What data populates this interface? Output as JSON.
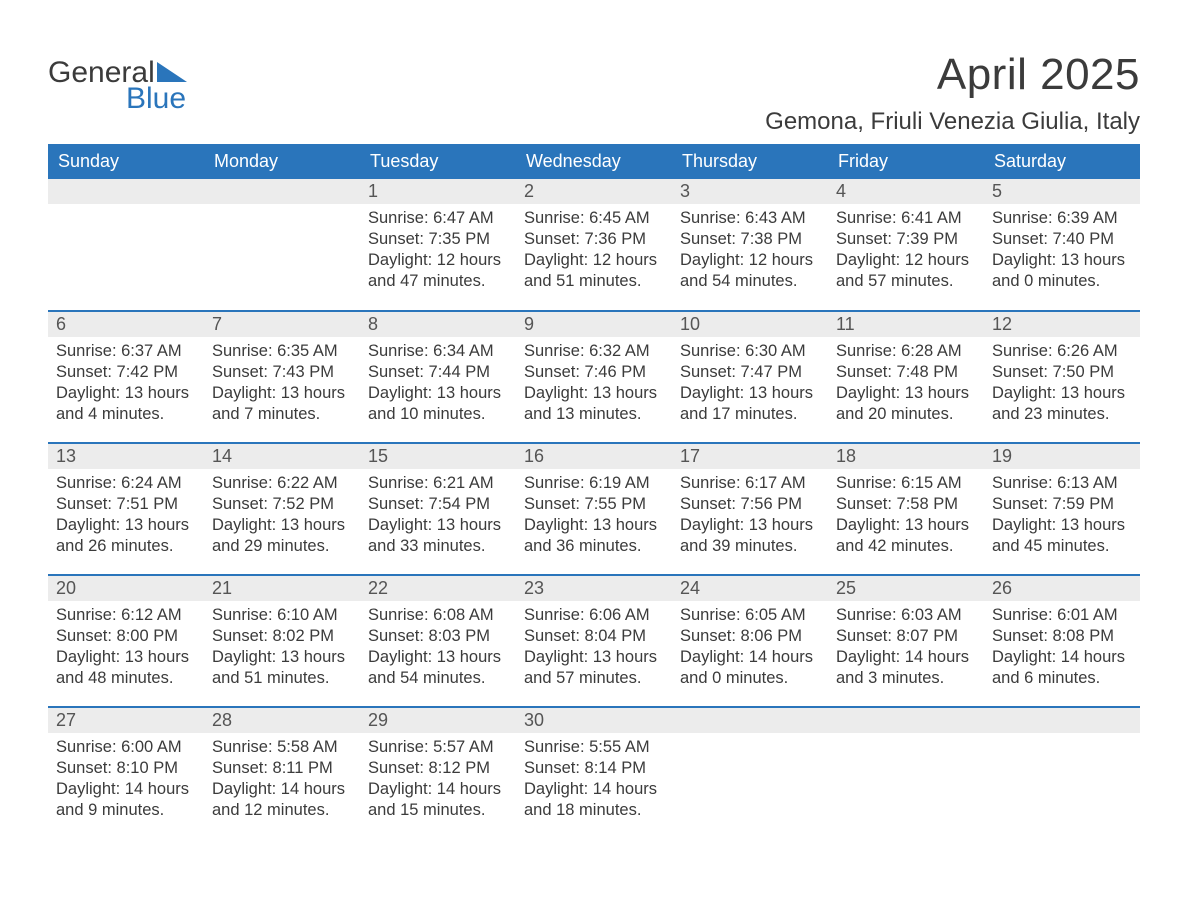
{
  "logo": {
    "word1": "General",
    "word2": "Blue"
  },
  "title": "April 2025",
  "location": "Gemona, Friuli Venezia Giulia, Italy",
  "colors": {
    "brand_blue": "#2a75bb",
    "header_text": "#ffffff",
    "body_text": "#3b3b3b",
    "daynum_bg": "#ececec",
    "background": "#ffffff"
  },
  "typography": {
    "title_fontsize": 44,
    "location_fontsize": 24,
    "header_fontsize": 18,
    "cell_fontsize": 16.5
  },
  "calendar": {
    "headers": [
      "Sunday",
      "Monday",
      "Tuesday",
      "Wednesday",
      "Thursday",
      "Friday",
      "Saturday"
    ],
    "weeks": [
      [
        {
          "day": "",
          "sunrise": "",
          "sunset": "",
          "daylight": ""
        },
        {
          "day": "",
          "sunrise": "",
          "sunset": "",
          "daylight": ""
        },
        {
          "day": "1",
          "sunrise": "Sunrise: 6:47 AM",
          "sunset": "Sunset: 7:35 PM",
          "daylight": "Daylight: 12 hours and 47 minutes."
        },
        {
          "day": "2",
          "sunrise": "Sunrise: 6:45 AM",
          "sunset": "Sunset: 7:36 PM",
          "daylight": "Daylight: 12 hours and 51 minutes."
        },
        {
          "day": "3",
          "sunrise": "Sunrise: 6:43 AM",
          "sunset": "Sunset: 7:38 PM",
          "daylight": "Daylight: 12 hours and 54 minutes."
        },
        {
          "day": "4",
          "sunrise": "Sunrise: 6:41 AM",
          "sunset": "Sunset: 7:39 PM",
          "daylight": "Daylight: 12 hours and 57 minutes."
        },
        {
          "day": "5",
          "sunrise": "Sunrise: 6:39 AM",
          "sunset": "Sunset: 7:40 PM",
          "daylight": "Daylight: 13 hours and 0 minutes."
        }
      ],
      [
        {
          "day": "6",
          "sunrise": "Sunrise: 6:37 AM",
          "sunset": "Sunset: 7:42 PM",
          "daylight": "Daylight: 13 hours and 4 minutes."
        },
        {
          "day": "7",
          "sunrise": "Sunrise: 6:35 AM",
          "sunset": "Sunset: 7:43 PM",
          "daylight": "Daylight: 13 hours and 7 minutes."
        },
        {
          "day": "8",
          "sunrise": "Sunrise: 6:34 AM",
          "sunset": "Sunset: 7:44 PM",
          "daylight": "Daylight: 13 hours and 10 minutes."
        },
        {
          "day": "9",
          "sunrise": "Sunrise: 6:32 AM",
          "sunset": "Sunset: 7:46 PM",
          "daylight": "Daylight: 13 hours and 13 minutes."
        },
        {
          "day": "10",
          "sunrise": "Sunrise: 6:30 AM",
          "sunset": "Sunset: 7:47 PM",
          "daylight": "Daylight: 13 hours and 17 minutes."
        },
        {
          "day": "11",
          "sunrise": "Sunrise: 6:28 AM",
          "sunset": "Sunset: 7:48 PM",
          "daylight": "Daylight: 13 hours and 20 minutes."
        },
        {
          "day": "12",
          "sunrise": "Sunrise: 6:26 AM",
          "sunset": "Sunset: 7:50 PM",
          "daylight": "Daylight: 13 hours and 23 minutes."
        }
      ],
      [
        {
          "day": "13",
          "sunrise": "Sunrise: 6:24 AM",
          "sunset": "Sunset: 7:51 PM",
          "daylight": "Daylight: 13 hours and 26 minutes."
        },
        {
          "day": "14",
          "sunrise": "Sunrise: 6:22 AM",
          "sunset": "Sunset: 7:52 PM",
          "daylight": "Daylight: 13 hours and 29 minutes."
        },
        {
          "day": "15",
          "sunrise": "Sunrise: 6:21 AM",
          "sunset": "Sunset: 7:54 PM",
          "daylight": "Daylight: 13 hours and 33 minutes."
        },
        {
          "day": "16",
          "sunrise": "Sunrise: 6:19 AM",
          "sunset": "Sunset: 7:55 PM",
          "daylight": "Daylight: 13 hours and 36 minutes."
        },
        {
          "day": "17",
          "sunrise": "Sunrise: 6:17 AM",
          "sunset": "Sunset: 7:56 PM",
          "daylight": "Daylight: 13 hours and 39 minutes."
        },
        {
          "day": "18",
          "sunrise": "Sunrise: 6:15 AM",
          "sunset": "Sunset: 7:58 PM",
          "daylight": "Daylight: 13 hours and 42 minutes."
        },
        {
          "day": "19",
          "sunrise": "Sunrise: 6:13 AM",
          "sunset": "Sunset: 7:59 PM",
          "daylight": "Daylight: 13 hours and 45 minutes."
        }
      ],
      [
        {
          "day": "20",
          "sunrise": "Sunrise: 6:12 AM",
          "sunset": "Sunset: 8:00 PM",
          "daylight": "Daylight: 13 hours and 48 minutes."
        },
        {
          "day": "21",
          "sunrise": "Sunrise: 6:10 AM",
          "sunset": "Sunset: 8:02 PM",
          "daylight": "Daylight: 13 hours and 51 minutes."
        },
        {
          "day": "22",
          "sunrise": "Sunrise: 6:08 AM",
          "sunset": "Sunset: 8:03 PM",
          "daylight": "Daylight: 13 hours and 54 minutes."
        },
        {
          "day": "23",
          "sunrise": "Sunrise: 6:06 AM",
          "sunset": "Sunset: 8:04 PM",
          "daylight": "Daylight: 13 hours and 57 minutes."
        },
        {
          "day": "24",
          "sunrise": "Sunrise: 6:05 AM",
          "sunset": "Sunset: 8:06 PM",
          "daylight": "Daylight: 14 hours and 0 minutes."
        },
        {
          "day": "25",
          "sunrise": "Sunrise: 6:03 AM",
          "sunset": "Sunset: 8:07 PM",
          "daylight": "Daylight: 14 hours and 3 minutes."
        },
        {
          "day": "26",
          "sunrise": "Sunrise: 6:01 AM",
          "sunset": "Sunset: 8:08 PM",
          "daylight": "Daylight: 14 hours and 6 minutes."
        }
      ],
      [
        {
          "day": "27",
          "sunrise": "Sunrise: 6:00 AM",
          "sunset": "Sunset: 8:10 PM",
          "daylight": "Daylight: 14 hours and 9 minutes."
        },
        {
          "day": "28",
          "sunrise": "Sunrise: 5:58 AM",
          "sunset": "Sunset: 8:11 PM",
          "daylight": "Daylight: 14 hours and 12 minutes."
        },
        {
          "day": "29",
          "sunrise": "Sunrise: 5:57 AM",
          "sunset": "Sunset: 8:12 PM",
          "daylight": "Daylight: 14 hours and 15 minutes."
        },
        {
          "day": "30",
          "sunrise": "Sunrise: 5:55 AM",
          "sunset": "Sunset: 8:14 PM",
          "daylight": "Daylight: 14 hours and 18 minutes."
        },
        {
          "day": "",
          "sunrise": "",
          "sunset": "",
          "daylight": ""
        },
        {
          "day": "",
          "sunrise": "",
          "sunset": "",
          "daylight": ""
        },
        {
          "day": "",
          "sunrise": "",
          "sunset": "",
          "daylight": ""
        }
      ]
    ]
  }
}
